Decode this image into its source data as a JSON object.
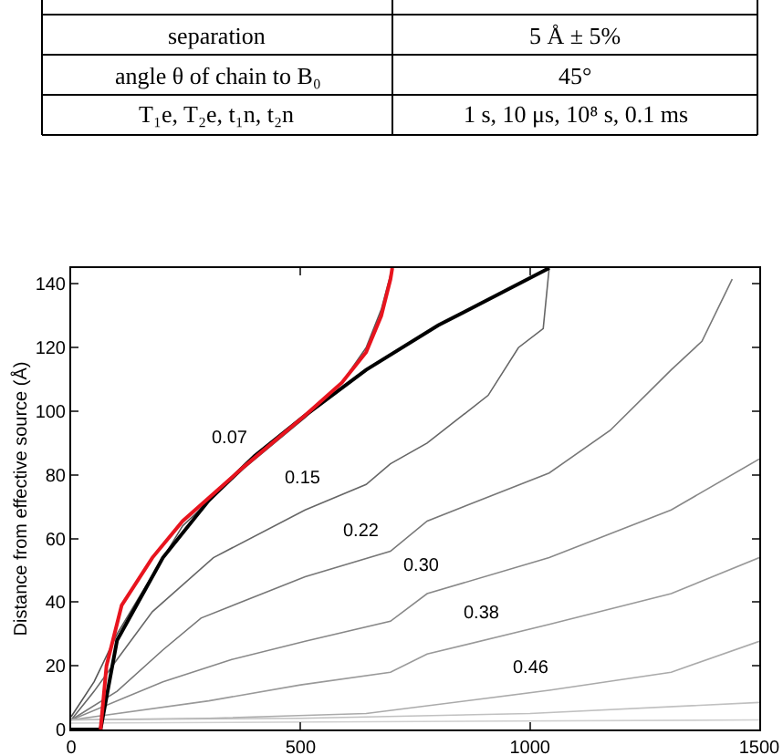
{
  "chart_data": {
    "type": "line",
    "ylabel": "Distance from effective source (Å)",
    "xlim": [
      0,
      1500
    ],
    "ylim": [
      0,
      145
    ],
    "xticks": [
      0,
      500,
      1000,
      1500
    ],
    "yticks": [
      0,
      20,
      40,
      60,
      80,
      100,
      120,
      140
    ],
    "line_style": "solid",
    "marker": "none",
    "series": [
      {
        "color": "#555555",
        "x": [
          0,
          50,
          100,
          150,
          243,
          376,
          510,
          590,
          643,
          676,
          700
        ],
        "values": [
          4,
          15,
          30,
          42,
          64,
          82,
          98,
          109,
          120,
          132,
          145
        ]
      },
      {
        "color": "#666666",
        "x": [
          0,
          50,
          100,
          177,
          310,
          510,
          643,
          696,
          776,
          909,
          975,
          1029,
          1042
        ],
        "values": [
          3,
          12,
          22,
          37,
          54,
          69,
          77,
          83.5,
          90,
          105,
          120,
          126,
          145
        ]
      },
      {
        "color": "#777777",
        "x": [
          0,
          100,
          200,
          283,
          510,
          696,
          776,
          1042,
          1175,
          1308,
          1375,
          1441
        ],
        "values": [
          3,
          12,
          25,
          35,
          48,
          56,
          65.5,
          80.6,
          94,
          113,
          122,
          141.5
        ]
      },
      {
        "color": "#888888",
        "x": [
          0,
          200,
          350,
          510,
          696,
          776,
          1042,
          1308,
          1500
        ],
        "values": [
          3,
          15,
          22,
          27.7,
          34,
          42.7,
          54,
          69,
          85
        ]
      },
      {
        "color": "#999999",
        "x": [
          0,
          300,
          500,
          696,
          776,
          1042,
          1308,
          1500
        ],
        "values": [
          3,
          9,
          14,
          18,
          23.7,
          33,
          42.7,
          54
        ]
      },
      {
        "color": "#aaaaaa",
        "x": [
          0,
          300,
          643,
          1042,
          1308,
          1500
        ],
        "values": [
          3,
          3.5,
          5,
          12.3,
          18,
          27.7
        ]
      },
      {
        "color": "#c0c0c0",
        "x": [
          0,
          500,
          1000,
          1500
        ],
        "values": [
          3,
          3.5,
          5,
          8.5
        ]
      },
      {
        "color": "#d0d0d0",
        "x": [
          0,
          1500
        ],
        "values": [
          2,
          3
        ]
      },
      {
        "color": "#000000",
        "x": [
          0,
          64,
          100,
          200,
          300,
          400,
          510,
          643,
          800,
          1042
        ],
        "values": [
          0,
          0,
          28,
          54,
          72,
          86,
          98.7,
          113,
          127,
          145
        ]
      },
      {
        "color": "#e8141e",
        "x": [
          64,
          77,
          110,
          177,
          243,
          376,
          510,
          590,
          643,
          676,
          696,
          700
        ],
        "values": [
          0,
          20,
          39,
          54,
          65.5,
          82.5,
          98.7,
          109,
          118.6,
          130,
          141.5,
          145
        ]
      }
    ],
    "annotations": [
      {
        "text": "0.07",
        "x": 400,
        "y": 84.9
      },
      {
        "text": "0.15",
        "x": 560,
        "y": 72
      },
      {
        "text": "0.22",
        "x": 690,
        "y": 55.7
      },
      {
        "text": "0.30",
        "x": 820,
        "y": 44.6
      },
      {
        "text": "0.38",
        "x": 950,
        "y": 29.8
      },
      {
        "text": "0.46",
        "x": 1060,
        "y": 12.7
      },
      "separation",
      "5 Å ± 5%",
      "angle θ of chain to B₀",
      "45°",
      "T₁e, T₂e, t₁n, t₂n",
      "1 s, 10 μs, 10⁸ s, 0.1 ms"
    ]
  }
}
